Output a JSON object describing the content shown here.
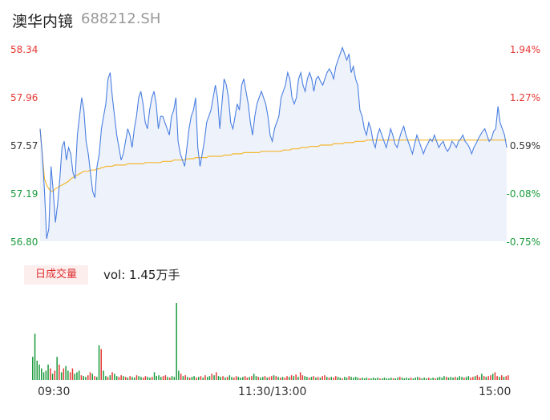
{
  "header": {
    "name": "澳华内镜",
    "code": "688212.SH"
  },
  "colors": {
    "up": "#e53935",
    "down": "#1a9b3c",
    "price_line": "#4a7fe0",
    "avg_line": "#f4b731"
  },
  "chart_data": {
    "type": "line",
    "title": "",
    "xlabel": "",
    "ylabel": "",
    "price_ylim": [
      56.8,
      58.34
    ],
    "left_ticks": [
      "58.34",
      "57.96",
      "57.57",
      "57.19",
      "56.80"
    ],
    "right_ticks": [
      "1.94%",
      "1.27%",
      "0.59%",
      "-0.08%",
      "-0.75%"
    ],
    "x_ticks": [
      "09:30",
      "11:30/13:00",
      "15:00"
    ],
    "price": [
      57.7,
      57.5,
      57.2,
      56.82,
      56.9,
      57.4,
      57.2,
      56.95,
      57.1,
      57.3,
      57.55,
      57.6,
      57.45,
      57.55,
      57.5,
      57.35,
      57.3,
      57.65,
      57.8,
      57.95,
      57.85,
      57.6,
      57.5,
      57.35,
      57.2,
      57.15,
      57.4,
      57.5,
      57.7,
      57.8,
      57.9,
      58.1,
      58.15,
      57.95,
      57.8,
      57.65,
      57.55,
      57.45,
      57.5,
      57.6,
      57.7,
      57.65,
      57.55,
      57.7,
      57.8,
      57.95,
      58.0,
      57.9,
      57.75,
      57.7,
      57.85,
      57.95,
      58.0,
      57.9,
      57.7,
      57.8,
      57.8,
      57.75,
      57.7,
      57.65,
      57.8,
      57.85,
      57.95,
      57.6,
      57.5,
      57.45,
      57.4,
      57.55,
      57.7,
      57.8,
      57.85,
      57.95,
      57.55,
      57.4,
      57.5,
      57.6,
      57.75,
      57.8,
      57.85,
      57.95,
      58.05,
      57.95,
      57.7,
      57.9,
      58.1,
      58.05,
      57.95,
      57.75,
      57.7,
      57.8,
      57.9,
      57.85,
      58.05,
      58.1,
      58.0,
      57.9,
      57.75,
      57.65,
      57.8,
      57.9,
      57.95,
      58.0,
      57.95,
      57.9,
      57.8,
      57.65,
      57.6,
      57.7,
      57.75,
      57.8,
      57.95,
      58.0,
      58.05,
      58.15,
      58.1,
      57.95,
      57.9,
      57.95,
      58.1,
      58.15,
      58.05,
      58.0,
      58.1,
      58.15,
      58.1,
      58.0,
      58.1,
      58.12,
      58.08,
      58.05,
      58.1,
      58.15,
      58.18,
      58.15,
      58.1,
      58.2,
      58.25,
      58.3,
      58.35,
      58.3,
      58.25,
      58.3,
      58.15,
      58.2,
      58.1,
      58.05,
      57.85,
      57.8,
      57.7,
      57.65,
      57.75,
      57.7,
      57.6,
      57.55,
      57.65,
      57.7,
      57.65,
      57.6,
      57.55,
      57.62,
      57.7,
      57.65,
      57.58,
      57.55,
      57.62,
      57.68,
      57.72,
      57.65,
      57.6,
      57.55,
      57.5,
      57.58,
      57.65,
      57.6,
      57.55,
      57.5,
      57.55,
      57.58,
      57.62,
      57.6,
      57.65,
      57.6,
      57.55,
      57.58,
      57.6,
      57.55,
      57.52,
      57.55,
      57.6,
      57.58,
      57.55,
      57.6,
      57.62,
      57.65,
      57.6,
      57.58,
      57.55,
      57.5,
      57.55,
      57.58,
      57.62,
      57.65,
      57.68,
      57.7,
      57.65,
      57.6,
      57.62,
      57.68,
      57.7,
      57.88,
      57.75,
      57.7,
      57.65,
      57.55
    ],
    "avg": [
      57.7,
      57.5,
      57.3,
      57.25,
      57.22,
      57.2,
      57.2,
      57.22,
      57.23,
      57.24,
      57.25,
      57.26,
      57.27,
      57.28,
      57.3,
      57.31,
      57.32,
      57.33,
      57.34,
      57.35,
      57.36,
      57.36,
      57.36,
      57.37,
      57.37,
      57.37,
      57.38,
      57.38,
      57.39,
      57.39,
      57.4,
      57.4,
      57.4,
      57.4,
      57.41,
      57.41,
      57.41,
      57.41,
      57.41,
      57.41,
      57.42,
      57.42,
      57.42,
      57.42,
      57.42,
      57.42,
      57.42,
      57.42,
      57.43,
      57.43,
      57.43,
      57.43,
      57.43,
      57.43,
      57.43,
      57.43,
      57.44,
      57.44,
      57.44,
      57.44,
      57.44,
      57.45,
      57.45,
      57.45,
      57.45,
      57.45,
      57.45,
      57.46,
      57.46,
      57.46,
      57.46,
      57.47,
      57.47,
      57.47,
      57.47,
      57.47,
      57.47,
      57.48,
      57.48,
      57.48,
      57.48,
      57.48,
      57.48,
      57.48,
      57.49,
      57.49,
      57.49,
      57.49,
      57.5,
      57.5,
      57.5,
      57.5,
      57.5,
      57.51,
      57.51,
      57.51,
      57.51,
      57.51,
      57.51,
      57.51,
      57.51,
      57.52,
      57.52,
      57.52,
      57.52,
      57.52,
      57.52,
      57.52,
      57.52,
      57.52,
      57.52,
      57.53,
      57.53,
      57.53,
      57.53,
      57.54,
      57.54,
      57.54,
      57.54,
      57.55,
      57.55,
      57.55,
      57.55,
      57.56,
      57.56,
      57.56,
      57.56,
      57.56,
      57.57,
      57.57,
      57.57,
      57.57,
      57.57,
      57.57,
      57.58,
      57.58,
      57.58,
      57.58,
      57.58,
      57.59,
      57.59,
      57.59,
      57.59,
      57.59,
      57.6,
      57.6,
      57.6,
      57.6,
      57.6,
      57.61,
      57.61,
      57.61,
      57.61,
      57.61,
      57.61,
      57.61,
      57.61,
      57.61,
      57.61,
      57.61,
      57.61,
      57.61,
      57.61,
      57.61,
      57.61,
      57.61,
      57.61,
      57.61,
      57.61,
      57.61,
      57.61,
      57.61,
      57.61,
      57.61,
      57.61,
      57.61,
      57.61,
      57.61,
      57.61,
      57.61,
      57.61,
      57.61,
      57.61,
      57.61,
      57.61,
      57.61,
      57.61,
      57.61,
      57.61,
      57.61,
      57.61,
      57.61,
      57.61,
      57.61,
      57.61,
      57.61,
      57.61,
      57.61,
      57.61,
      57.61,
      57.61,
      57.61,
      57.61,
      57.61,
      57.61,
      57.61,
      57.61,
      57.61,
      57.61,
      57.61,
      57.61,
      57.61,
      57.61,
      57.61
    ],
    "volume_label": "日成交量",
    "volume_text": "vol: 1.45万手",
    "volume": [
      0.3,
      0.6,
      0.25,
      0.2,
      0.15,
      0.1,
      0.12,
      0.2,
      0.15,
      0.08,
      0.12,
      0.3,
      0.2,
      0.1,
      0.15,
      0.18,
      0.12,
      0.1,
      0.15,
      0.08,
      0.1,
      0.12,
      0.06,
      0.05,
      0.04,
      0.06,
      0.1,
      0.08,
      0.05,
      0.04,
      0.45,
      0.4,
      0.12,
      0.05,
      0.04,
      0.06,
      0.1,
      0.08,
      0.05,
      0.04,
      0.06,
      0.05,
      0.04,
      0.03,
      0.05,
      0.04,
      0.03,
      0.06,
      0.05,
      0.04,
      0.03,
      0.05,
      0.04,
      0.03,
      0.04,
      0.1,
      0.05,
      0.06,
      0.04,
      0.05,
      0.06,
      0.04,
      0.03,
      0.05,
      0.04,
      1.0,
      0.12,
      0.08,
      0.05,
      0.06,
      0.04,
      0.03,
      0.04,
      0.05,
      0.03,
      0.04,
      0.05,
      0.03,
      0.06,
      0.04,
      0.05,
      0.08,
      0.06,
      0.1,
      0.05,
      0.04,
      0.05,
      0.03,
      0.04,
      0.06,
      0.04,
      0.03,
      0.05,
      0.04,
      0.03,
      0.04,
      0.05,
      0.03,
      0.04,
      0.05,
      0.08,
      0.05,
      0.04,
      0.03,
      0.04,
      0.05,
      0.03,
      0.04,
      0.05,
      0.06,
      0.05,
      0.04,
      0.03,
      0.04,
      0.03,
      0.05,
      0.04,
      0.06,
      0.05,
      0.07,
      0.04,
      0.1,
      0.06,
      0.05,
      0.04,
      0.03,
      0.04,
      0.05,
      0.03,
      0.04,
      0.03,
      0.05,
      0.06,
      0.04,
      0.03,
      0.04,
      0.03,
      0.05,
      0.04,
      0.03,
      0.02,
      0.04,
      0.03,
      0.05,
      0.04,
      0.03,
      0.04,
      0.03,
      0.02,
      0.03,
      0.02,
      0.03,
      0.02,
      0.02,
      0.03,
      0.02,
      0.03,
      0.02,
      0.02,
      0.03,
      0.02,
      0.02,
      0.03,
      0.02,
      0.02,
      0.03,
      0.04,
      0.03,
      0.02,
      0.03,
      0.02,
      0.03,
      0.02,
      0.03,
      0.04,
      0.03,
      0.02,
      0.03,
      0.02,
      0.03,
      0.02,
      0.03,
      0.02,
      0.03,
      0.04,
      0.03,
      0.05,
      0.04,
      0.03,
      0.04,
      0.03,
      0.04,
      0.03,
      0.05,
      0.04,
      0.03,
      0.04,
      0.05,
      0.03,
      0.04,
      0.05,
      0.06,
      0.04,
      0.08,
      0.05,
      0.04,
      0.05,
      0.06,
      0.08,
      0.1,
      0.05,
      0.04,
      0.06,
      0.04,
      0.05,
      0.06
    ],
    "volume_up": [
      false,
      false,
      false,
      false,
      false,
      false,
      false,
      false,
      true,
      false,
      true,
      false,
      true,
      false,
      true,
      false,
      false,
      true,
      true,
      false,
      false,
      false,
      true,
      false,
      false,
      true,
      true,
      false,
      true,
      false,
      false,
      true,
      false,
      false,
      true,
      false,
      true,
      false,
      false,
      true,
      true,
      false,
      true,
      false,
      true,
      false,
      false,
      true,
      false,
      false,
      true,
      true,
      false,
      false,
      true,
      false,
      false,
      false,
      false,
      true,
      true,
      false,
      true,
      false,
      false,
      false,
      false,
      true,
      false,
      true,
      false,
      true,
      false,
      false,
      true,
      false,
      true,
      false,
      true,
      false,
      false,
      true,
      false,
      true,
      false,
      false,
      true,
      false,
      true,
      false,
      false,
      true,
      true,
      false,
      false,
      false,
      true,
      true,
      false,
      true,
      false,
      false,
      true,
      false,
      false,
      true,
      false,
      true,
      true,
      false,
      true,
      false,
      true,
      false,
      true,
      true,
      false,
      true,
      false,
      true,
      false,
      true,
      true,
      false,
      false,
      true,
      false,
      true,
      false,
      true,
      false,
      true,
      true,
      false,
      true,
      false,
      true,
      true,
      false,
      false,
      true,
      false,
      false,
      true,
      false,
      false,
      false,
      false,
      true,
      false,
      false,
      false,
      true,
      false,
      false,
      false,
      false,
      true,
      false,
      false,
      false,
      false,
      false,
      true,
      false,
      false,
      true,
      false,
      false,
      false,
      false,
      true,
      false,
      false,
      false,
      true,
      false,
      false,
      false,
      true,
      false,
      false,
      true,
      false,
      false,
      false,
      false,
      true,
      false,
      false,
      false,
      true,
      false,
      false,
      false,
      true,
      false,
      false,
      true,
      true,
      false,
      true,
      true,
      false,
      true,
      false,
      true,
      true,
      false,
      true,
      true,
      false,
      true,
      false,
      true,
      true,
      false,
      true
    ]
  }
}
